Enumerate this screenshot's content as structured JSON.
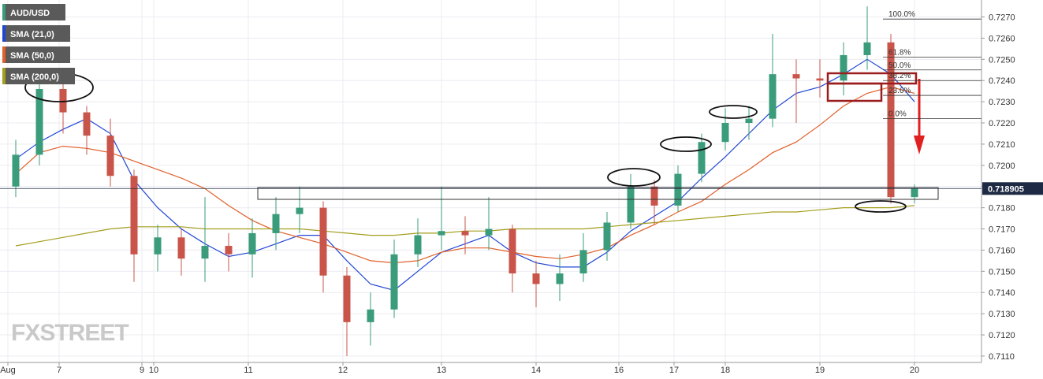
{
  "chart_data": {
    "type": "candlestick",
    "watermark": "FXSTREET",
    "x": [
      4,
      10,
      16,
      22,
      28,
      34,
      40,
      46,
      52,
      58,
      64,
      70,
      76,
      82,
      88,
      94,
      100,
      106,
      112,
      118,
      124,
      130,
      136,
      142,
      148,
      154,
      160,
      166,
      172,
      178,
      184,
      190,
      196,
      202,
      208,
      214,
      220,
      226,
      232
    ],
    "candles": {
      "name": "AUD/USD",
      "up_color": "#3a9c7a",
      "down_color": "#c9554a",
      "open": [
        0.719,
        0.7205,
        0.7236,
        0.7225,
        0.7214,
        0.7195,
        0.7158,
        0.7166,
        0.7156,
        0.7162,
        0.7158,
        0.7168,
        0.7177,
        0.718,
        0.7148,
        0.7126,
        0.7132,
        0.7158,
        0.7167,
        0.7169,
        0.7167,
        0.717,
        0.7149,
        0.7144,
        0.7149,
        0.716,
        0.7173,
        0.719,
        0.7181,
        0.7196,
        0.7211,
        0.722,
        0.7222,
        0.7243,
        0.7241,
        0.724,
        0.7252,
        0.7258,
        0.7185
      ],
      "high": [
        0.7212,
        0.7241,
        0.724,
        0.7228,
        0.7222,
        0.7198,
        0.7172,
        0.717,
        0.7185,
        0.7168,
        0.7175,
        0.7185,
        0.719,
        0.7183,
        0.7152,
        0.714,
        0.7165,
        0.7175,
        0.719,
        0.7176,
        0.7185,
        0.7172,
        0.7155,
        0.7158,
        0.7168,
        0.7178,
        0.7196,
        0.7193,
        0.72,
        0.7215,
        0.7227,
        0.7228,
        0.7262,
        0.725,
        0.725,
        0.7258,
        0.7275,
        0.7262,
        0.7191
      ],
      "low": [
        0.7185,
        0.72,
        0.7215,
        0.7205,
        0.719,
        0.7145,
        0.715,
        0.7148,
        0.7145,
        0.715,
        0.7147,
        0.716,
        0.7168,
        0.714,
        0.711,
        0.7115,
        0.7128,
        0.7152,
        0.716,
        0.7158,
        0.716,
        0.714,
        0.7133,
        0.7136,
        0.7145,
        0.7155,
        0.717,
        0.7172,
        0.7178,
        0.7192,
        0.7207,
        0.7212,
        0.7218,
        0.722,
        0.7232,
        0.7233,
        0.7245,
        0.7182,
        0.7182
      ],
      "close": [
        0.7205,
        0.7236,
        0.7225,
        0.7214,
        0.7195,
        0.7158,
        0.7166,
        0.7156,
        0.7162,
        0.7158,
        0.7168,
        0.7177,
        0.718,
        0.7148,
        0.7126,
        0.7132,
        0.7158,
        0.7167,
        0.7169,
        0.7167,
        0.717,
        0.7149,
        0.7144,
        0.7149,
        0.716,
        0.7173,
        0.719,
        0.7181,
        0.7196,
        0.7211,
        0.722,
        0.7222,
        0.7243,
        0.7241,
        0.724,
        0.7252,
        0.7258,
        0.7185,
        0.718905
      ]
    },
    "lines": [
      {
        "name": "SMA (21,0)",
        "color": "#2046d6",
        "values": [
          0.7203,
          0.7211,
          0.7217,
          0.7222,
          0.7215,
          0.7193,
          0.718,
          0.717,
          0.7163,
          0.7157,
          0.7159,
          0.7163,
          0.7167,
          0.7167,
          0.7155,
          0.7144,
          0.7141,
          0.715,
          0.7159,
          0.7163,
          0.7167,
          0.7159,
          0.7154,
          0.7152,
          0.7152,
          0.7159,
          0.7169,
          0.7176,
          0.7183,
          0.7194,
          0.7204,
          0.7215,
          0.7226,
          0.7234,
          0.7237,
          0.7243,
          0.725,
          0.7243,
          0.723
        ]
      },
      {
        "name": "SMA (50,0)",
        "color": "#e0602a",
        "values": [
          0.7196,
          0.7206,
          0.7209,
          0.7208,
          0.7206,
          0.7202,
          0.7198,
          0.7194,
          0.7189,
          0.7181,
          0.7174,
          0.7169,
          0.7166,
          0.7163,
          0.7159,
          0.7155,
          0.7154,
          0.7155,
          0.7159,
          0.7161,
          0.7161,
          0.7159,
          0.7157,
          0.7156,
          0.7158,
          0.7161,
          0.7167,
          0.7172,
          0.7178,
          0.7183,
          0.7191,
          0.7198,
          0.7206,
          0.7211,
          0.7219,
          0.7228,
          0.7234,
          0.7237,
          0.7234
        ]
      },
      {
        "name": "SMA (200,0)",
        "color": "#a39e1c",
        "values": [
          0.7162,
          0.7164,
          0.7166,
          0.7168,
          0.717,
          0.7171,
          0.7171,
          0.7171,
          0.717,
          0.717,
          0.717,
          0.717,
          0.717,
          0.7169,
          0.7168,
          0.7167,
          0.7167,
          0.7168,
          0.7168,
          0.7169,
          0.7169,
          0.717,
          0.717,
          0.717,
          0.717,
          0.7171,
          0.7172,
          0.7173,
          0.7174,
          0.7175,
          0.7176,
          0.7177,
          0.7178,
          0.7178,
          0.7179,
          0.718,
          0.718,
          0.718,
          0.7181
        ]
      }
    ],
    "xlim": [
      0,
      249
    ],
    "xticks": [
      {
        "value": 2,
        "label": "Aug"
      },
      {
        "value": 15,
        "label": "7"
      },
      {
        "value": 36,
        "label": "9"
      },
      {
        "value": 39,
        "label": "10"
      },
      {
        "value": 63,
        "label": "11"
      },
      {
        "value": 87,
        "label": "12"
      },
      {
        "value": 112,
        "label": "13"
      },
      {
        "value": 136,
        "label": "14"
      },
      {
        "value": 157,
        "label": "16"
      },
      {
        "value": 171,
        "label": "17"
      },
      {
        "value": 184,
        "label": "18"
      },
      {
        "value": 208,
        "label": "19"
      },
      {
        "value": 232,
        "label": "20"
      }
    ],
    "ylim": [
      0.7107,
      0.7278
    ],
    "yticks": [
      {
        "value": 0.711,
        "label": "0.7110"
      },
      {
        "value": 0.712,
        "label": "0.7120"
      },
      {
        "value": 0.713,
        "label": "0.7130"
      },
      {
        "value": 0.714,
        "label": "0.7140"
      },
      {
        "value": 0.715,
        "label": "0.7150"
      },
      {
        "value": 0.716,
        "label": "0.7160"
      },
      {
        "value": 0.717,
        "label": "0.7170"
      },
      {
        "value": 0.718,
        "label": "0.7180"
      },
      {
        "value": 0.719,
        "label": "0.7190"
      },
      {
        "value": 0.72,
        "label": "0.7200"
      },
      {
        "value": 0.721,
        "label": "0.7210"
      },
      {
        "value": 0.722,
        "label": "0.7220"
      },
      {
        "value": 0.723,
        "label": "0.7230"
      },
      {
        "value": 0.724,
        "label": "0.7240"
      },
      {
        "value": 0.725,
        "label": "0.7250"
      },
      {
        "value": 0.726,
        "label": "0.7260"
      },
      {
        "value": 0.727,
        "label": "0.7270"
      }
    ],
    "grid": true,
    "last_price": 0.718905,
    "fib": [
      {
        "label": "100.0%",
        "value": 0.7269
      },
      {
        "label": "61.8%",
        "value": 0.7251
      },
      {
        "label": "50.0%",
        "value": 0.7245
      },
      {
        "label": "38.2%",
        "value": 0.724
      },
      {
        "label": "23.6%",
        "value": 0.7233
      },
      {
        "label": "0.0%",
        "value": 0.7222
      }
    ]
  }
}
